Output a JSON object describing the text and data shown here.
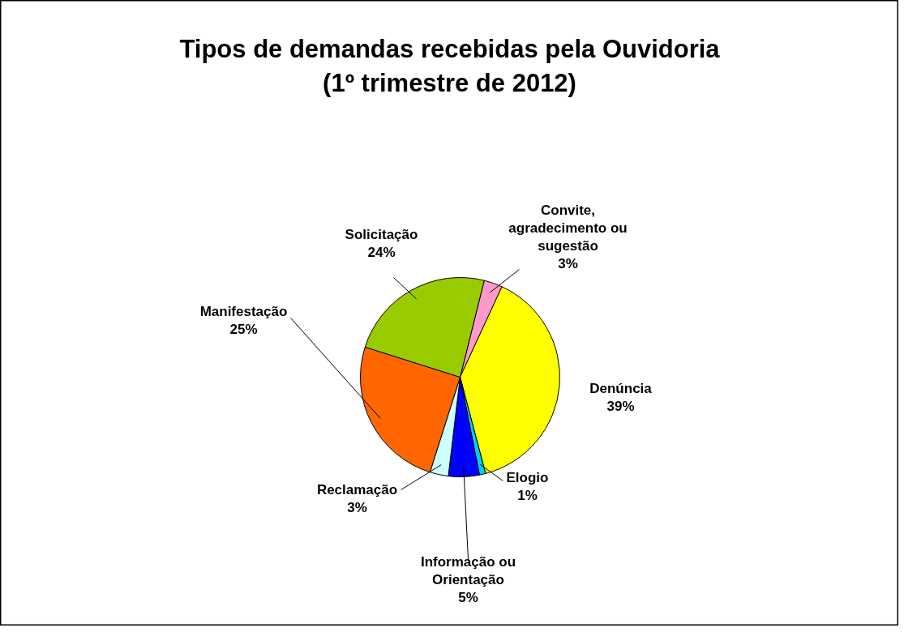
{
  "chart_data": {
    "type": "pie",
    "title": "Tipos de demandas recebidas pela Ouvidoria\n(1º trimestre de 2012)",
    "categories": [
      "Convite, agradecimento ou sugestão",
      "Denúncia",
      "Elogio",
      "Informação ou Orientação",
      "Reclamação",
      "Manifestação",
      "Solicitação"
    ],
    "values": [
      3,
      39,
      1,
      5,
      3,
      25,
      24
    ],
    "value_labels": [
      "3%",
      "39%",
      "1%",
      "5%",
      "3%",
      "25%",
      "24%"
    ],
    "colors": [
      "#ff99cc",
      "#ffff00",
      "#00ccff",
      "#0000ff",
      "#ccffff",
      "#ff6600",
      "#99cc00"
    ]
  }
}
